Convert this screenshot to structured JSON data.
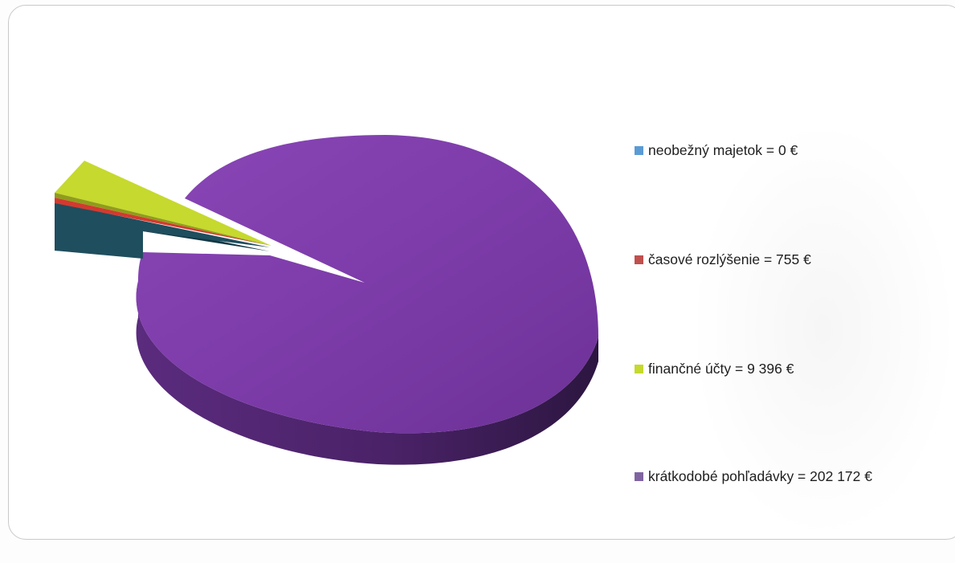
{
  "chart_data": {
    "type": "pie",
    "is_3d": true,
    "exploded": true,
    "legend_position": "right",
    "slices": [
      {
        "name": "neobežný majetok",
        "value": 0,
        "label": "neobežný majetok = 0 €",
        "color": "#1f4e5e",
        "legend_color": "#5b9bd5"
      },
      {
        "name": "časové rozlýšenie",
        "value": 755,
        "label": "časové rozlýšenie = 755 €",
        "color": "#d33a2f",
        "legend_color": "#c0504d"
      },
      {
        "name": "finančné účty",
        "value": 9396,
        "label": "finančné účty = 9 396 €",
        "color": "#c6d92e",
        "legend_color": "#c6d92e"
      },
      {
        "name": "krátkodobé pohľadávky",
        "value": 202172,
        "label": "krátkodobé pohľadávky = 202 172 €",
        "color": "#7b3ea6",
        "legend_color": "#8064a2"
      }
    ]
  }
}
